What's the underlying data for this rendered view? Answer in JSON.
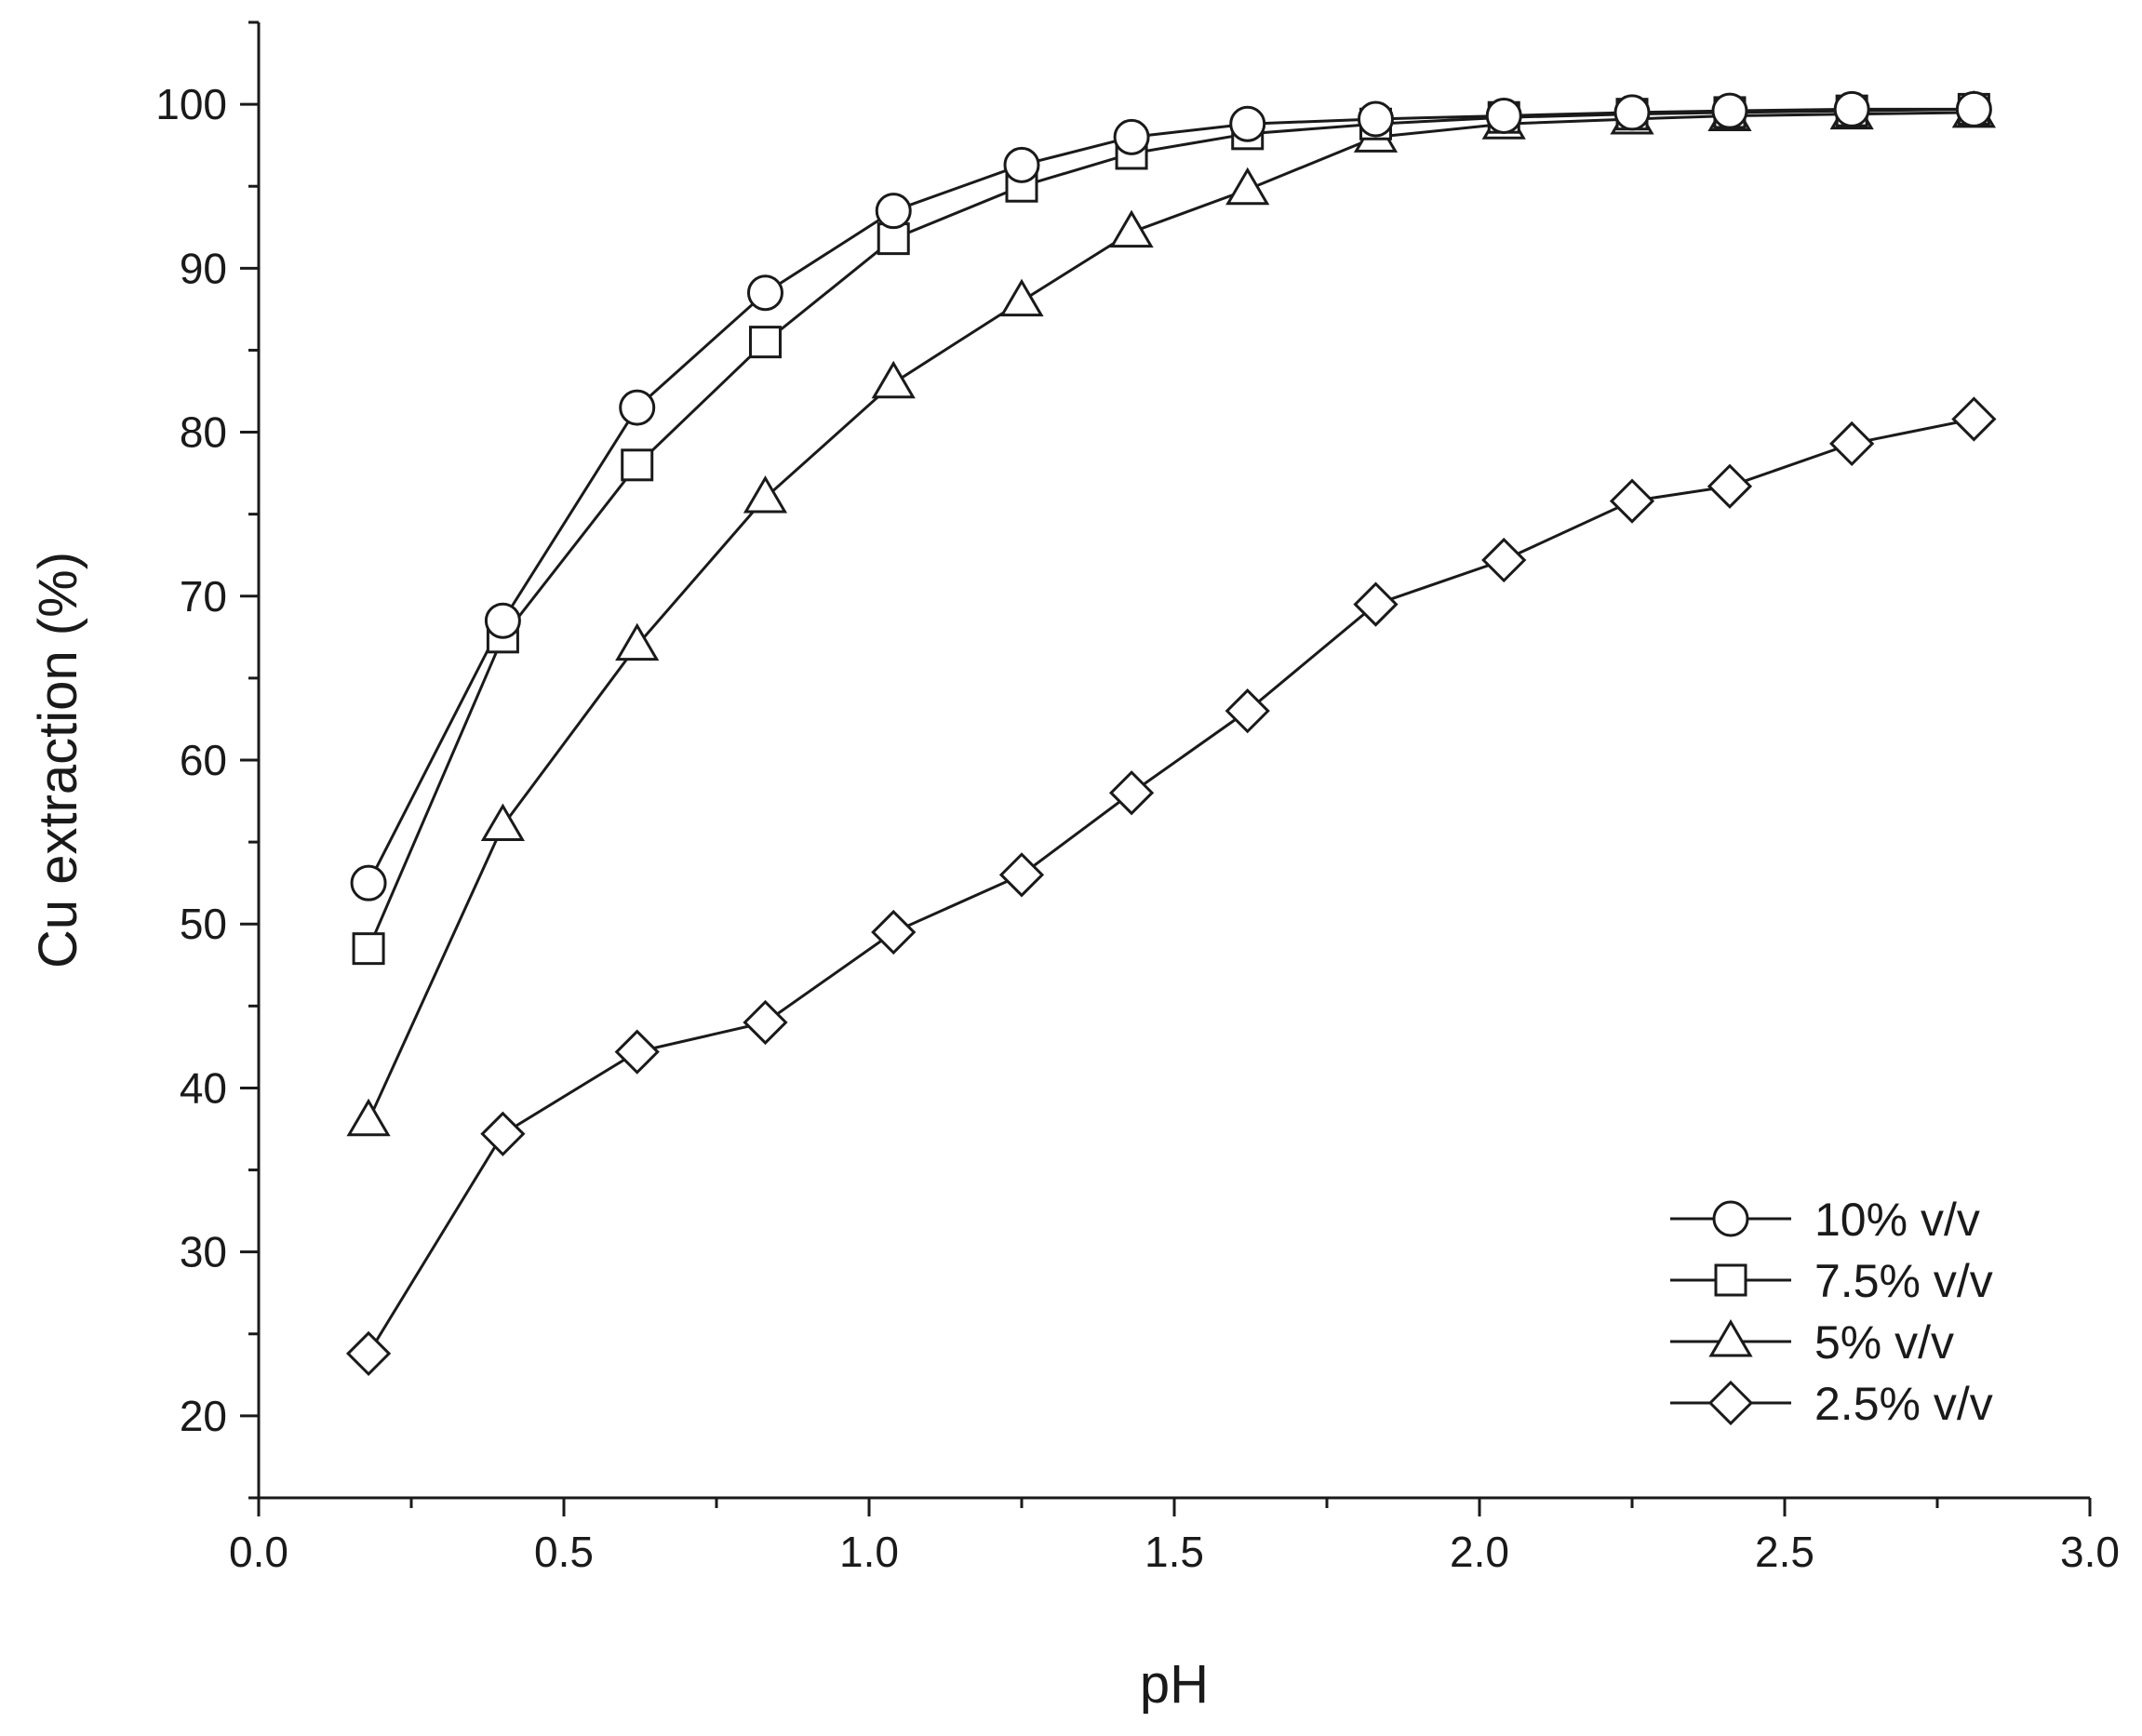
{
  "chart_data": {
    "type": "line",
    "xlabel": "pH",
    "ylabel": "Cu extraction (%)",
    "xlim": [
      0.0,
      3.0
    ],
    "ylim": [
      15,
      105
    ],
    "x_ticks": [
      0.0,
      0.5,
      1.0,
      1.5,
      2.0,
      2.5,
      3.0
    ],
    "x_tick_labels": [
      "0.0",
      "0.5",
      "1.0",
      "1.5",
      "2.0",
      "2.5",
      "3.0"
    ],
    "y_ticks": [
      20,
      30,
      40,
      50,
      60,
      70,
      80,
      90,
      100
    ],
    "y_tick_labels": [
      "20",
      "30",
      "40",
      "50",
      "60",
      "70",
      "80",
      "90",
      "100"
    ],
    "grid": false,
    "legend_position": "bottom-right",
    "line_color": "#1a1a1a",
    "marker_fill": "#ffffff",
    "series": [
      {
        "name": "10% v/v",
        "marker": "circle",
        "x": [
          0.18,
          0.4,
          0.62,
          0.83,
          1.04,
          1.25,
          1.43,
          1.62,
          1.83,
          2.04,
          2.25,
          2.41,
          2.61,
          2.81
        ],
        "y": [
          52.5,
          68.5,
          81.5,
          88.5,
          93.5,
          96.3,
          98.0,
          98.8,
          99.1,
          99.3,
          99.5,
          99.6,
          99.7,
          99.7
        ]
      },
      {
        "name": "7.5% v/v",
        "marker": "square",
        "x": [
          0.18,
          0.4,
          0.62,
          0.83,
          1.04,
          1.25,
          1.43,
          1.62,
          1.83,
          2.04,
          2.25,
          2.41,
          2.61,
          2.81
        ],
        "y": [
          48.5,
          67.5,
          78.0,
          85.5,
          91.8,
          95.0,
          97.0,
          98.2,
          98.8,
          99.2,
          99.4,
          99.5,
          99.6,
          99.7
        ]
      },
      {
        "name": "5% v/v",
        "marker": "triangle",
        "x": [
          0.18,
          0.4,
          0.62,
          0.83,
          1.04,
          1.25,
          1.43,
          1.62,
          1.83,
          2.04,
          2.25,
          2.41,
          2.61,
          2.81
        ],
        "y": [
          38.0,
          56.0,
          67.0,
          76.0,
          83.0,
          88.0,
          92.2,
          94.8,
          98.0,
          98.8,
          99.1,
          99.3,
          99.4,
          99.5
        ]
      },
      {
        "name": "2.5% v/v",
        "marker": "diamond",
        "x": [
          0.18,
          0.4,
          0.62,
          0.83,
          1.04,
          1.25,
          1.43,
          1.62,
          1.83,
          2.04,
          2.25,
          2.41,
          2.61,
          2.81
        ],
        "y": [
          23.8,
          37.2,
          42.2,
          44.0,
          49.5,
          53.0,
          58.0,
          63.0,
          69.5,
          72.2,
          75.8,
          76.7,
          79.3,
          80.8
        ]
      }
    ]
  }
}
